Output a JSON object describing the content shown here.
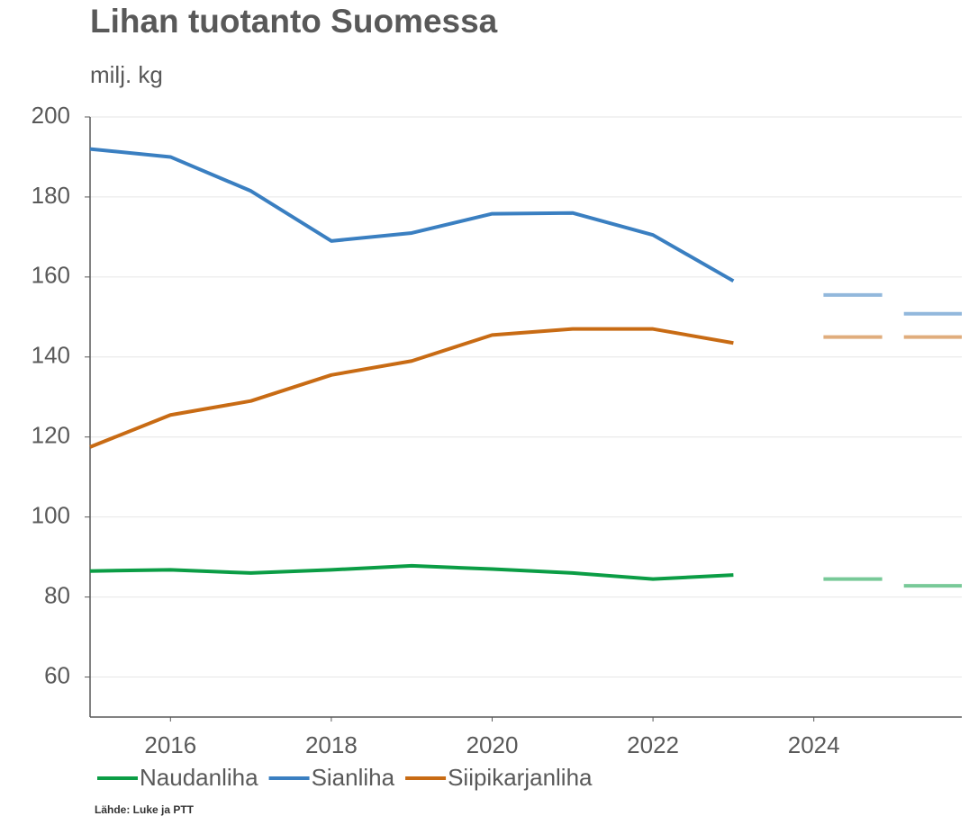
{
  "chart_data": {
    "type": "line",
    "title": "Lihan tuotanto Suomessa",
    "y_label": "milj. kg",
    "source": "Lähde: Luke ja PTT",
    "x": [
      2015,
      2016,
      2017,
      2018,
      2019,
      2020,
      2021,
      2022,
      2023,
      2024,
      2025
    ],
    "forecast_from": 2024,
    "series": [
      {
        "name": "Naudanliha",
        "color": "#0b9d45",
        "values": [
          86.5,
          86.8,
          86,
          86.8,
          87.8,
          87,
          86,
          84.5,
          85.5,
          84.5,
          82.8
        ]
      },
      {
        "name": "Sianliha",
        "color": "#3a7fc1",
        "values": [
          192,
          190,
          181.5,
          169,
          171,
          175.8,
          176,
          170.5,
          159,
          155.5,
          150.8
        ]
      },
      {
        "name": "Siipikarjanliha",
        "color": "#c86b14",
        "values": [
          117.5,
          125.5,
          129,
          135.5,
          139,
          145.5,
          147,
          147,
          143.5,
          145,
          145
        ]
      }
    ],
    "xlim": [
      2015,
      2025.84
    ],
    "xticks": [
      2016,
      2018,
      2020,
      2022,
      2024
    ],
    "ylim": [
      50,
      200
    ],
    "yticks": [
      60,
      80,
      100,
      120,
      140,
      160,
      180,
      200
    ],
    "grid": true
  }
}
